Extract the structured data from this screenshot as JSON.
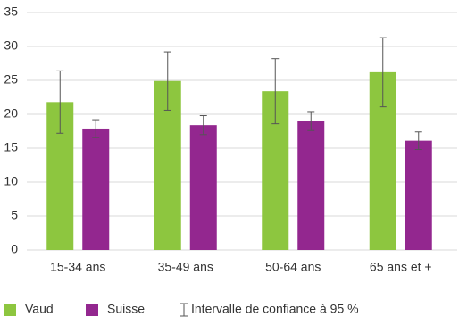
{
  "chart_data": {
    "type": "bar",
    "categories": [
      "15-34 ans",
      "35-49 ans",
      "50-64 ans",
      "65 ans et +"
    ],
    "series": [
      {
        "name": "Vaud",
        "color": "#8dc63f",
        "values": [
          21.8,
          24.9,
          23.4,
          26.2
        ],
        "errors": [
          4.6,
          4.3,
          4.8,
          5.1
        ]
      },
      {
        "name": "Suisse",
        "color": "#93278f",
        "values": [
          17.9,
          18.4,
          19.0,
          16.1
        ],
        "errors": [
          1.3,
          1.4,
          1.4,
          1.3
        ]
      }
    ],
    "error_legend": "Intervalle de confiance à 95 %",
    "ylim": [
      0,
      35
    ],
    "yticks": [
      0,
      5,
      10,
      15,
      20,
      25,
      30,
      35
    ],
    "grid": true
  }
}
